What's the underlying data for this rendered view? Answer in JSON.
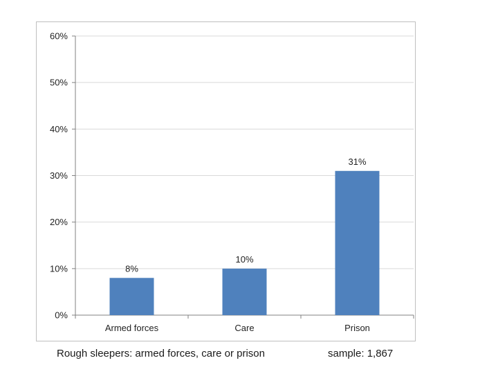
{
  "chart_data": {
    "type": "bar",
    "categories": [
      "Armed forces",
      "Care",
      "Prison"
    ],
    "values": [
      8,
      10,
      31
    ],
    "data_labels": [
      "8%",
      "10%",
      "31%"
    ],
    "ylim": [
      0,
      60
    ],
    "y_ticks": [
      0,
      10,
      20,
      30,
      40,
      50,
      60
    ],
    "y_tick_labels": [
      "0%",
      "10%",
      "20%",
      "30%",
      "40%",
      "50%",
      "60%"
    ],
    "grid": true,
    "bar_color": "#4f81bd",
    "grid_color": "#d9d9d9",
    "axis_color": "#808080"
  },
  "caption": {
    "left": "Rough sleepers:  armed forces, care or prison",
    "right": "sample: 1,867"
  }
}
